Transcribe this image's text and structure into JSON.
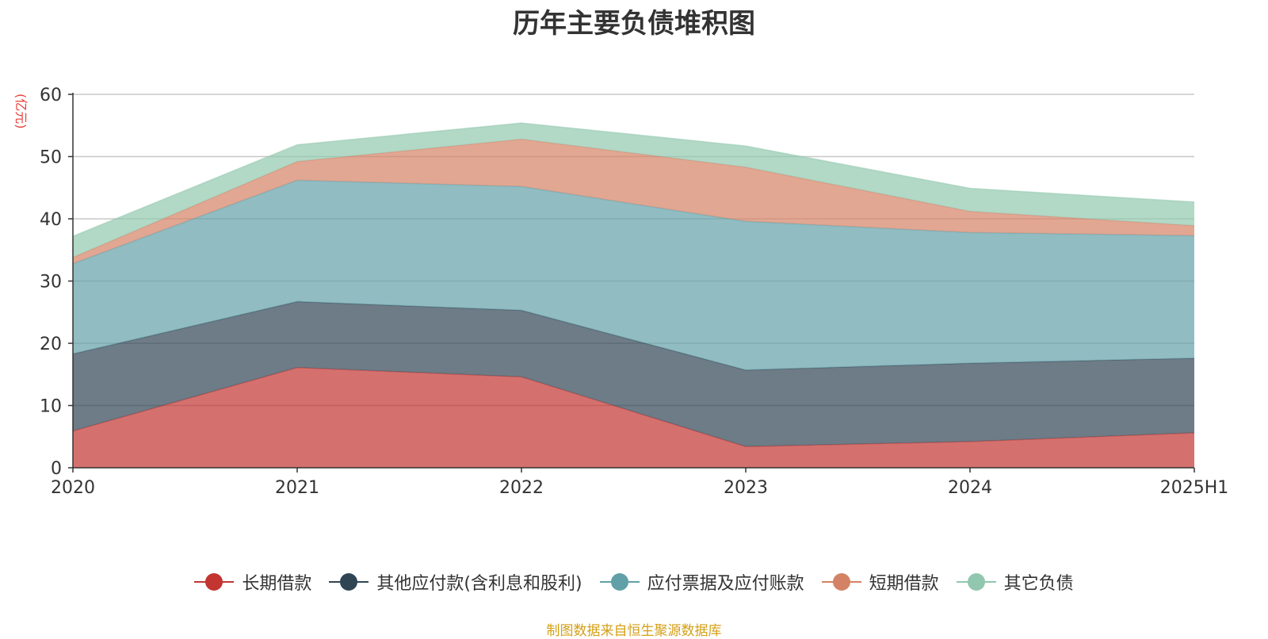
{
  "chart_data": {
    "type": "area",
    "stacked": true,
    "title": "历年主要负债堆积图",
    "ylabel": "(亿元)",
    "xlabel": "",
    "categories": [
      "2020",
      "2021",
      "2022",
      "2023",
      "2024",
      "2025H1"
    ],
    "ylim": [
      0,
      60
    ],
    "yticks": [
      "0",
      "10",
      "20",
      "30",
      "40",
      "50",
      "60"
    ],
    "grid": true,
    "legend_position": "bottom",
    "series": [
      {
        "name": "长期借款",
        "color": "#c23531",
        "values": [
          5.9,
          16.1,
          14.6,
          3.4,
          4.2,
          5.6
        ]
      },
      {
        "name": "其他应付款(含利息和股利)",
        "color": "#2f4554",
        "values": [
          12.4,
          10.6,
          10.7,
          12.3,
          12.6,
          12.0
        ]
      },
      {
        "name": "应付票据及应付账款",
        "color": "#61a0a8",
        "values": [
          14.5,
          19.5,
          19.9,
          23.9,
          21.0,
          19.7
        ]
      },
      {
        "name": "短期借款",
        "color": "#d48265",
        "values": [
          1.0,
          3.0,
          7.6,
          8.7,
          3.4,
          1.6
        ]
      },
      {
        "name": "其它负债",
        "color": "#91c7ae",
        "values": [
          3.4,
          2.7,
          2.6,
          3.4,
          3.7,
          3.8
        ]
      }
    ],
    "source_note": "制图数据来自恒生聚源数据库"
  }
}
